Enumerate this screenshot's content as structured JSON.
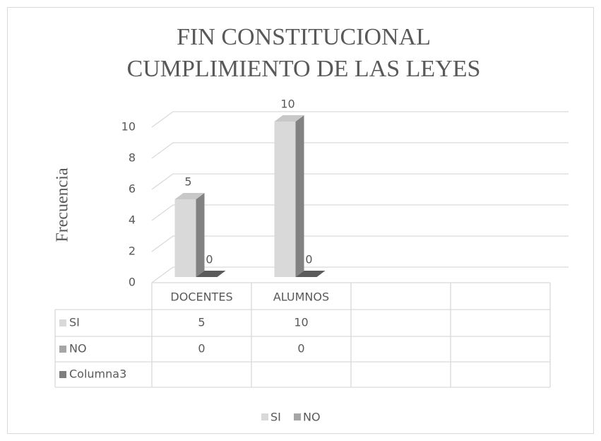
{
  "chart_data": {
    "type": "bar3d",
    "title": [
      "FIN CONSTITUCIONAL",
      "CUMPLIMIENTO DE LAS LEYES"
    ],
    "y_label": "Frecuencia",
    "categories": [
      "DOCENTES",
      "ALUMNOS",
      null,
      null
    ],
    "series": [
      {
        "name": "SI",
        "color": "#d9d9d9",
        "values": [
          5,
          10,
          null,
          null
        ],
        "in_legend": true
      },
      {
        "name": "NO",
        "color": "#a6a6a6",
        "values": [
          0,
          0,
          null,
          null
        ],
        "in_legend": true
      },
      {
        "name": "Columna3",
        "color": "#7f7f7f",
        "values": [
          null,
          null,
          null,
          null
        ],
        "in_legend": false
      }
    ],
    "ylim": [
      0,
      10
    ],
    "yticks": [
      0,
      2,
      4,
      6,
      8,
      10
    ],
    "grid": true,
    "legend": "bottom",
    "data_table": true
  }
}
